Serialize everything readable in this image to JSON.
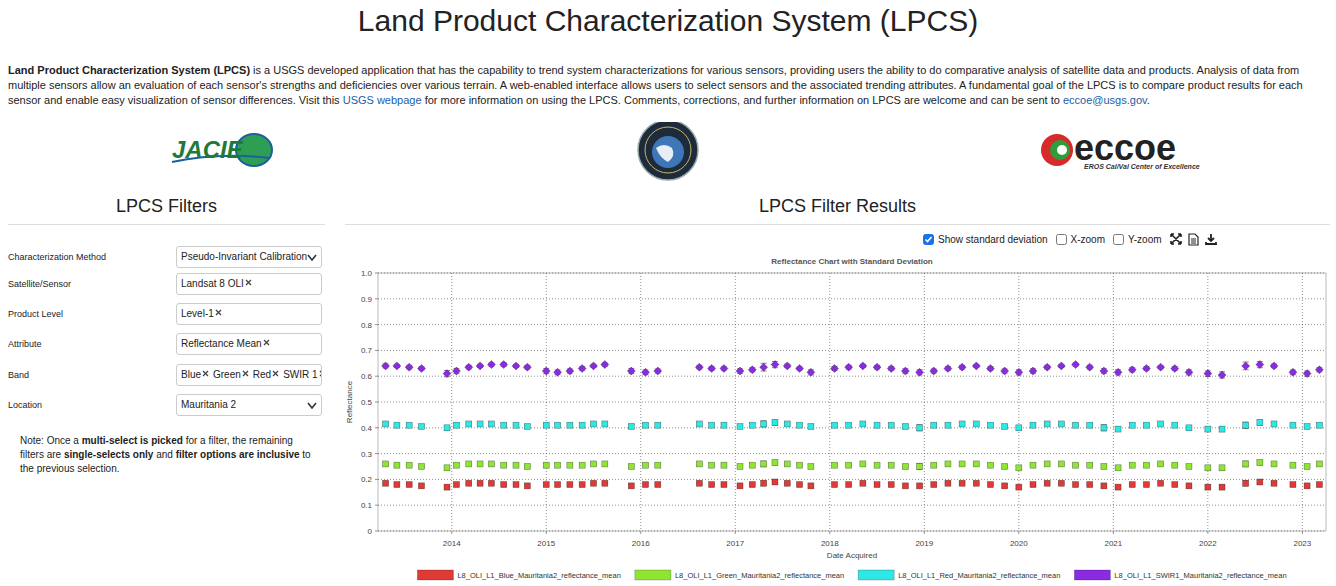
{
  "page": {
    "title": "Land Product Characterization System (LPCS)",
    "intro": {
      "lead": "Land Product Characterization System (LPCS)",
      "text1": " is a USGS developed application that has the capability to trend system characterizations for various sensors, providing users the ability to do comparative analysis of satellite data and products. Analysis of data from multiple sensors allow an evaluation of each sensor's strengths and deficiencies over various terrain. A web-enabled interface allows users to select sensors and the associated trending attributes. A fundamental goal of the LPCS is to compare product results for each sensor and enable easy visualization of sensor differences. Visit this ",
      "link1": "USGS webpage",
      "text2": " for more information on using the LPCS. Comments, corrections, and further information on LPCS are welcome and can be sent to ",
      "link2": "eccoe@usgs.gov",
      "text3": "."
    },
    "logos": {
      "jacie": "JACIE",
      "eccoe": "eccoe",
      "eccoe_subtitle": "EROS Cal/Val Center of Excellence"
    },
    "filters": {
      "heading": "LPCS Filters",
      "rows": [
        {
          "label": "Characterization Method",
          "selected": "Pseudo-Invariant Calibration"
        },
        {
          "label": "Satellite/Sensor",
          "tags": [
            "Landsat 8 OLI"
          ]
        },
        {
          "label": "Product Level",
          "tags": [
            "Level-1"
          ]
        },
        {
          "label": "Attribute",
          "tags": [
            "Reflectance Mean"
          ]
        },
        {
          "label": "Band",
          "tags": [
            "Blue",
            "Green",
            "Red",
            "SWIR 1"
          ]
        },
        {
          "label": "Location",
          "selected": "Mauritania 2"
        }
      ],
      "note": [
        "Note: Once a ",
        "multi-select is picked",
        " for a filter, the remaining filters are ",
        "single-selects only",
        " and ",
        "filter options are inclusive",
        " to the previous selection."
      ]
    },
    "results": {
      "heading": "LPCS Filter Results",
      "controls": [
        {
          "label": "Show standard deviation",
          "checked": true
        },
        {
          "label": "X-zoom",
          "checked": false
        },
        {
          "label": "Y-zoom",
          "checked": false
        }
      ]
    }
  },
  "chart_data": {
    "type": "scatter",
    "title": "Reflectance Chart with Standard Deviation",
    "x_label": "Date Acquired",
    "y_label": "Reflectance",
    "x": [
      2013.3,
      2013.42,
      2013.55,
      2013.68,
      2013.95,
      2014.05,
      2014.18,
      2014.3,
      2014.42,
      2014.55,
      2014.68,
      2014.8,
      2015.0,
      2015.12,
      2015.25,
      2015.38,
      2015.5,
      2015.62,
      2015.9,
      2016.05,
      2016.18,
      2016.62,
      2016.75,
      2016.88,
      2017.05,
      2017.18,
      2017.3,
      2017.42,
      2017.55,
      2017.68,
      2017.8,
      2018.05,
      2018.2,
      2018.35,
      2018.5,
      2018.65,
      2018.8,
      2018.95,
      2019.1,
      2019.25,
      2019.4,
      2019.55,
      2019.7,
      2019.85,
      2020.0,
      2020.15,
      2020.3,
      2020.45,
      2020.6,
      2020.75,
      2020.9,
      2021.05,
      2021.2,
      2021.35,
      2021.5,
      2021.65,
      2021.8,
      2022.0,
      2022.15,
      2022.4,
      2022.55,
      2022.7,
      2022.9,
      2023.05,
      2023.18
    ],
    "xlim": [
      2013.22,
      2023.25
    ],
    "xticks": [
      2014,
      2015,
      2016,
      2017,
      2018,
      2019,
      2020,
      2021,
      2022,
      2023
    ],
    "ylim": [
      0,
      1
    ],
    "yticks": [
      0,
      0.1,
      0.2,
      0.3,
      0.4,
      0.5,
      0.6,
      0.7,
      0.8,
      0.9,
      {
        "value": 1,
        "label": "1.0"
      }
    ],
    "grid": true,
    "legend": "bottom",
    "series": [
      {
        "name": "L8_OLI_L1_Blue_Mauritania2_reflectance_mean",
        "color": "#e03a36",
        "marker": "square",
        "values": [
          0.185,
          0.18,
          0.18,
          0.175,
          0.17,
          0.18,
          0.185,
          0.185,
          0.185,
          0.18,
          0.18,
          0.175,
          0.18,
          0.18,
          0.18,
          0.18,
          0.185,
          0.185,
          0.175,
          0.18,
          0.18,
          0.185,
          0.18,
          0.18,
          0.175,
          0.18,
          0.185,
          0.19,
          0.185,
          0.18,
          0.175,
          0.18,
          0.18,
          0.185,
          0.18,
          0.18,
          0.175,
          0.175,
          0.18,
          0.185,
          0.185,
          0.185,
          0.18,
          0.175,
          0.17,
          0.18,
          0.185,
          0.185,
          0.18,
          0.18,
          0.175,
          0.17,
          0.18,
          0.18,
          0.185,
          0.18,
          0.175,
          0.17,
          0.17,
          0.185,
          0.19,
          0.185,
          0.18,
          0.175,
          0.18
        ],
        "error": [
          0.004,
          0.003,
          0.003,
          0.004,
          0.007,
          0.006,
          0.003,
          0.003,
          0.003,
          0.004,
          0.003,
          0.004,
          0.006,
          0.005,
          0.004,
          0.004,
          0.003,
          0.003,
          0.006,
          0.005,
          0.005,
          0.004,
          0.004,
          0.003,
          0.005,
          0.005,
          0.009,
          0.008,
          0.004,
          0.003,
          0.006,
          0.005,
          0.004,
          0.003,
          0.004,
          0.004,
          0.005,
          0.006,
          0.005,
          0.004,
          0.004,
          0.003,
          0.004,
          0.005,
          0.006,
          0.005,
          0.004,
          0.003,
          0.003,
          0.004,
          0.007,
          0.006,
          0.005,
          0.004,
          0.003,
          0.004,
          0.006,
          0.007,
          0.008,
          0.01,
          0.008,
          0.004,
          0.005,
          0.006,
          0.005
        ]
      },
      {
        "name": "L8_OLI_L1_Green_Mauritania2_reflectance_mean",
        "color": "#8fe632",
        "marker": "square",
        "values": [
          0.26,
          0.255,
          0.255,
          0.25,
          0.245,
          0.255,
          0.26,
          0.26,
          0.26,
          0.255,
          0.255,
          0.25,
          0.255,
          0.255,
          0.255,
          0.255,
          0.26,
          0.26,
          0.25,
          0.255,
          0.255,
          0.26,
          0.255,
          0.255,
          0.25,
          0.255,
          0.26,
          0.265,
          0.26,
          0.255,
          0.25,
          0.255,
          0.255,
          0.26,
          0.255,
          0.255,
          0.25,
          0.25,
          0.255,
          0.26,
          0.26,
          0.26,
          0.255,
          0.25,
          0.245,
          0.255,
          0.26,
          0.26,
          0.255,
          0.255,
          0.25,
          0.245,
          0.255,
          0.255,
          0.26,
          0.255,
          0.25,
          0.245,
          0.245,
          0.26,
          0.265,
          0.26,
          0.255,
          0.25,
          0.26
        ],
        "error": [
          0.005,
          0.004,
          0.004,
          0.005,
          0.008,
          0.007,
          0.004,
          0.004,
          0.004,
          0.005,
          0.004,
          0.005,
          0.007,
          0.006,
          0.005,
          0.005,
          0.004,
          0.004,
          0.007,
          0.006,
          0.006,
          0.005,
          0.005,
          0.004,
          0.006,
          0.006,
          0.011,
          0.009,
          0.005,
          0.004,
          0.007,
          0.006,
          0.005,
          0.004,
          0.005,
          0.005,
          0.006,
          0.012,
          0.006,
          0.005,
          0.005,
          0.004,
          0.005,
          0.006,
          0.007,
          0.006,
          0.005,
          0.004,
          0.004,
          0.005,
          0.008,
          0.007,
          0.006,
          0.005,
          0.004,
          0.005,
          0.007,
          0.008,
          0.009,
          0.011,
          0.009,
          0.005,
          0.006,
          0.007,
          0.006
        ]
      },
      {
        "name": "L8_OLI_L1_Red_Mauritania2_reflectance_mean",
        "color": "#2ee8e6",
        "marker": "square",
        "values": [
          0.415,
          0.41,
          0.41,
          0.405,
          0.4,
          0.41,
          0.415,
          0.415,
          0.415,
          0.41,
          0.41,
          0.405,
          0.41,
          0.41,
          0.41,
          0.41,
          0.415,
          0.415,
          0.405,
          0.41,
          0.41,
          0.415,
          0.41,
          0.41,
          0.405,
          0.41,
          0.415,
          0.42,
          0.415,
          0.41,
          0.405,
          0.41,
          0.41,
          0.415,
          0.41,
          0.41,
          0.405,
          0.4,
          0.41,
          0.41,
          0.415,
          0.415,
          0.41,
          0.405,
          0.4,
          0.41,
          0.415,
          0.415,
          0.41,
          0.41,
          0.4,
          0.395,
          0.41,
          0.41,
          0.415,
          0.41,
          0.4,
          0.395,
          0.395,
          0.41,
          0.42,
          0.415,
          0.41,
          0.405,
          0.41
        ],
        "error": [
          0.006,
          0.005,
          0.005,
          0.006,
          0.009,
          0.008,
          0.005,
          0.005,
          0.005,
          0.006,
          0.005,
          0.006,
          0.008,
          0.007,
          0.006,
          0.006,
          0.005,
          0.005,
          0.008,
          0.007,
          0.007,
          0.006,
          0.006,
          0.005,
          0.007,
          0.007,
          0.012,
          0.01,
          0.006,
          0.005,
          0.008,
          0.007,
          0.006,
          0.005,
          0.006,
          0.006,
          0.007,
          0.012,
          0.007,
          0.006,
          0.006,
          0.005,
          0.006,
          0.007,
          0.008,
          0.007,
          0.006,
          0.005,
          0.005,
          0.006,
          0.012,
          0.008,
          0.007,
          0.006,
          0.005,
          0.006,
          0.008,
          0.009,
          0.01,
          0.012,
          0.01,
          0.006,
          0.007,
          0.008,
          0.007
        ]
      },
      {
        "name": "L8_OLI_L1_SWIR1_Mauritania2_reflectance_mean",
        "color": "#8a2be2",
        "marker": "diamond",
        "values": [
          0.64,
          0.64,
          0.635,
          0.63,
          0.61,
          0.62,
          0.635,
          0.64,
          0.645,
          0.645,
          0.64,
          0.635,
          0.62,
          0.615,
          0.62,
          0.63,
          0.64,
          0.645,
          0.62,
          0.615,
          0.62,
          0.635,
          0.63,
          0.63,
          0.62,
          0.625,
          0.635,
          0.645,
          0.64,
          0.63,
          0.615,
          0.63,
          0.635,
          0.64,
          0.635,
          0.63,
          0.62,
          0.615,
          0.62,
          0.63,
          0.635,
          0.64,
          0.63,
          0.62,
          0.615,
          0.62,
          0.635,
          0.64,
          0.645,
          0.635,
          0.62,
          0.615,
          0.625,
          0.63,
          0.635,
          0.63,
          0.615,
          0.61,
          0.605,
          0.64,
          0.645,
          0.64,
          0.615,
          0.61,
          0.625
        ],
        "error": [
          0.008,
          0.006,
          0.007,
          0.006,
          0.012,
          0.01,
          0.007,
          0.006,
          0.006,
          0.007,
          0.006,
          0.007,
          0.01,
          0.009,
          0.008,
          0.007,
          0.006,
          0.006,
          0.01,
          0.009,
          0.008,
          0.007,
          0.007,
          0.006,
          0.009,
          0.008,
          0.015,
          0.012,
          0.007,
          0.006,
          0.01,
          0.008,
          0.007,
          0.006,
          0.007,
          0.007,
          0.009,
          0.01,
          0.008,
          0.007,
          0.007,
          0.006,
          0.007,
          0.008,
          0.01,
          0.009,
          0.007,
          0.006,
          0.006,
          0.007,
          0.009,
          0.01,
          0.008,
          0.007,
          0.006,
          0.007,
          0.01,
          0.011,
          0.012,
          0.015,
          0.012,
          0.007,
          0.009,
          0.01,
          0.008
        ]
      }
    ]
  }
}
